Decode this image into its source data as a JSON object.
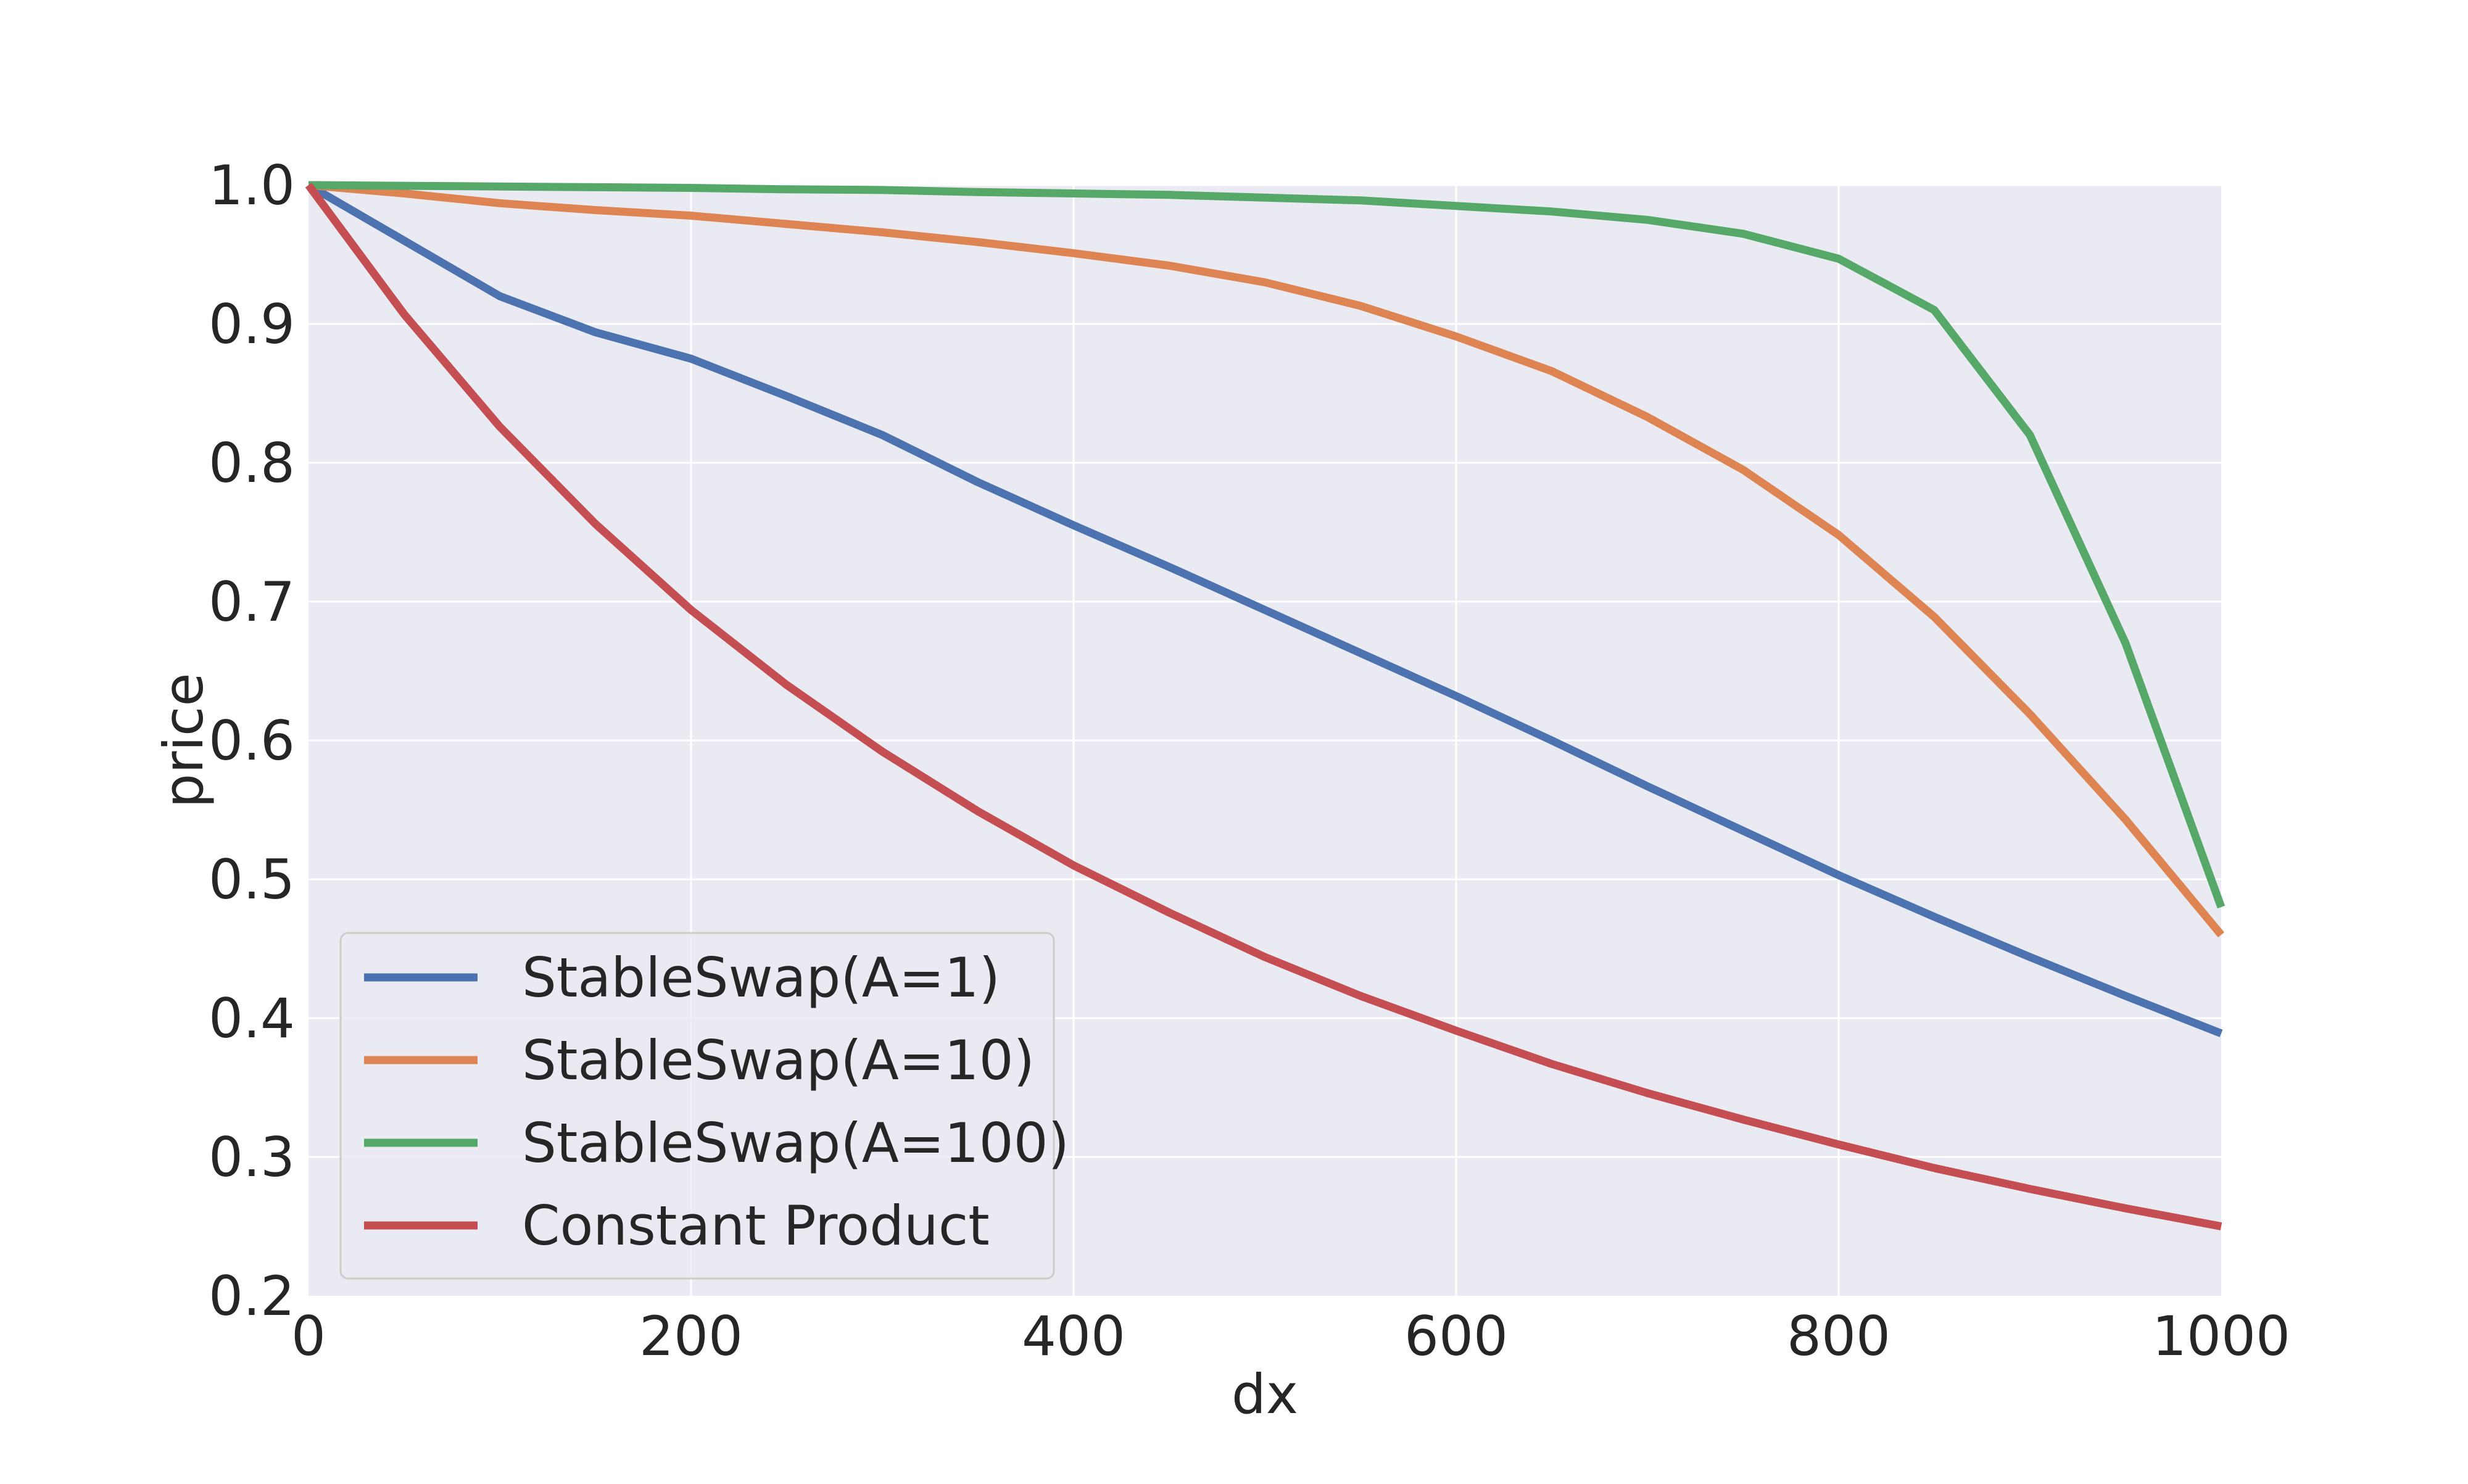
{
  "chart_data": {
    "type": "line",
    "title": "",
    "xlabel": "dx",
    "ylabel": "price",
    "xlim": [
      0,
      1000
    ],
    "ylim": [
      0.2,
      1.0
    ],
    "xticks": [
      0,
      200,
      400,
      600,
      800,
      1000
    ],
    "xtick_labels": [
      "0",
      "200",
      "400",
      "600",
      "800",
      "1000"
    ],
    "yticks": [
      0.2,
      0.3,
      0.4,
      0.5,
      0.6,
      0.7,
      0.8,
      0.9,
      1.0
    ],
    "ytick_labels": [
      "0.2",
      "0.3",
      "0.4",
      "0.5",
      "0.6",
      "0.7",
      "0.8",
      "0.9",
      "1.0"
    ],
    "grid": true,
    "legend_position": "lower-left",
    "x": [
      0,
      50,
      100,
      150,
      200,
      250,
      300,
      350,
      400,
      450,
      500,
      550,
      600,
      650,
      700,
      750,
      800,
      850,
      900,
      950,
      1000
    ],
    "series": [
      {
        "name": "StableSwap(A=1)",
        "color": "#4c72b0",
        "values": [
          1.0,
          0.96,
          0.92,
          0.894,
          0.875,
          0.848,
          0.82,
          0.786,
          0.755,
          0.725,
          0.694,
          0.663,
          0.632,
          0.6,
          0.567,
          0.535,
          0.503,
          0.473,
          0.444,
          0.416,
          0.389
        ]
      },
      {
        "name": "StableSwap(A=10)",
        "color": "#dd8452",
        "values": [
          1.0,
          0.994,
          0.987,
          0.982,
          0.978,
          0.972,
          0.966,
          0.959,
          0.951,
          0.942,
          0.93,
          0.913,
          0.891,
          0.866,
          0.833,
          0.795,
          0.748,
          0.689,
          0.619,
          0.543,
          0.46
        ]
      },
      {
        "name": "StableSwap(A=100)",
        "color": "#55a868",
        "values": [
          1.0,
          0.9995,
          0.999,
          0.9985,
          0.998,
          0.997,
          0.9965,
          0.995,
          0.994,
          0.993,
          0.991,
          0.989,
          0.985,
          0.981,
          0.975,
          0.965,
          0.947,
          0.91,
          0.82,
          0.67,
          0.48
        ]
      },
      {
        "name": "Constant Product",
        "color": "#c44e52",
        "values": [
          1.0,
          0.907,
          0.826,
          0.756,
          0.694,
          0.64,
          0.592,
          0.549,
          0.51,
          0.476,
          0.444,
          0.416,
          0.391,
          0.367,
          0.346,
          0.327,
          0.309,
          0.292,
          0.277,
          0.263,
          0.25
        ]
      }
    ]
  }
}
